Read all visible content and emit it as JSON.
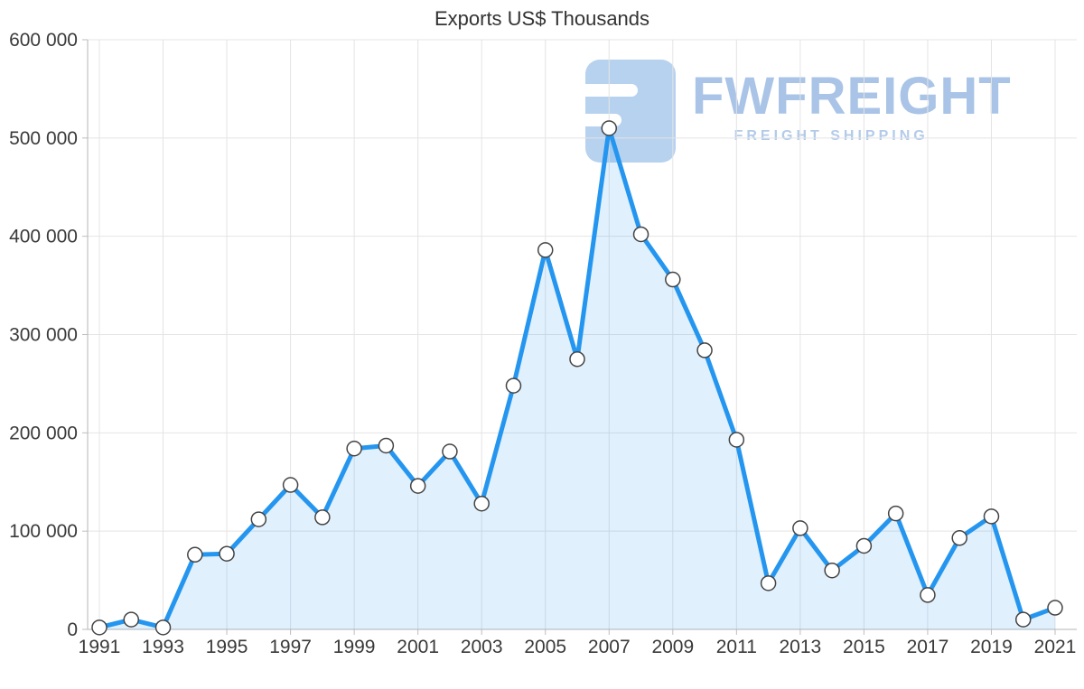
{
  "watermark": {
    "brand": "FWFREIGHT",
    "tagline": "FREIGHT SHIPPING"
  },
  "chart_data": {
    "type": "area",
    "title": "Exports US$ Thousands",
    "x": [
      1991,
      1992,
      1993,
      1994,
      1995,
      1996,
      1997,
      1998,
      1999,
      2000,
      2001,
      2002,
      2003,
      2004,
      2005,
      2006,
      2007,
      2008,
      2009,
      2010,
      2011,
      2012,
      2013,
      2014,
      2015,
      2016,
      2017,
      2018,
      2019,
      2020,
      2021
    ],
    "values": [
      2000,
      10000,
      2000,
      76000,
      77000,
      112000,
      147000,
      114000,
      184000,
      187000,
      146000,
      181000,
      128000,
      248000,
      386000,
      275000,
      510000,
      402000,
      356000,
      284000,
      193000,
      47000,
      103000,
      60000,
      85000,
      118000,
      35000,
      93000,
      115000,
      10000,
      22000
    ],
    "ylim": [
      0,
      600000
    ],
    "y_tick_labels": [
      "0",
      "100 000",
      "200 000",
      "300 000",
      "400 000",
      "500 000",
      "600 000"
    ],
    "x_tick_labels": [
      "1991",
      "1993",
      "1995",
      "1997",
      "1999",
      "2001",
      "2003",
      "2005",
      "2007",
      "2009",
      "2011",
      "2013",
      "2015",
      "2017",
      "2019",
      "2021"
    ],
    "grid": "on",
    "xlabel": "",
    "ylabel": "",
    "colors": {
      "line": "#2596ef",
      "fill": "rgba(37,150,239,0.14)",
      "marker_fill": "#ffffff",
      "marker_stroke": "#444444",
      "gridline": "#e4e4e4",
      "axis": "#b5b5b5",
      "tick": "#bdbdbd",
      "label": "#3a3a3a"
    }
  }
}
